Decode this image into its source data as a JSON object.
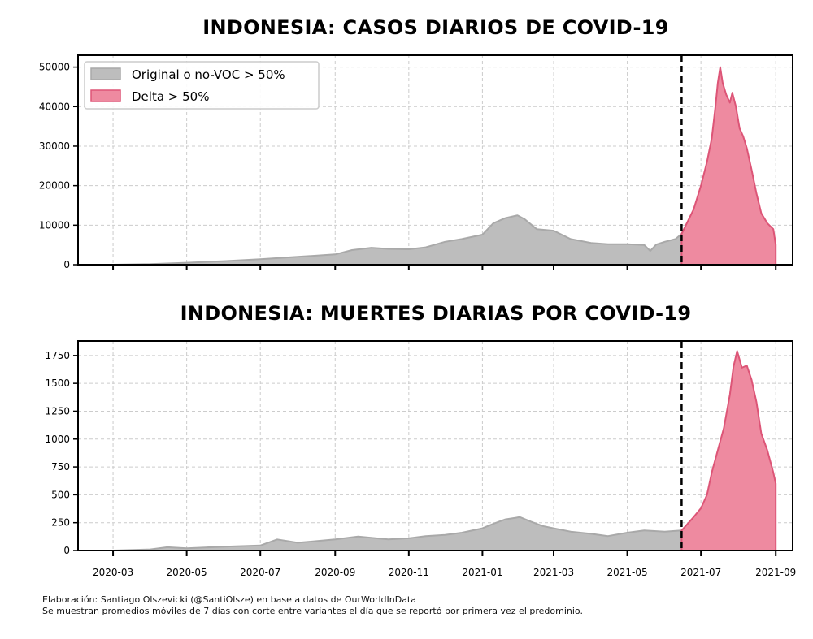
{
  "figure": {
    "footnote_1": "Elaboración: Santiago Olszevicki (@SantiOlsze) en base a datos de OurWorldInData",
    "footnote_2": "Se muestran promedios móviles de 7 días con corte entre variantes el día que se reportó por primera vez el predominio."
  },
  "legend": {
    "entries": [
      {
        "label": "Original o no-VOC > 50%",
        "color": "#bdbdbd",
        "edge": "#a9a9a9"
      },
      {
        "label": "Delta > 50%",
        "color": "#ee8aa0",
        "edge": "#dd5577"
      }
    ],
    "placement": "upper-left"
  },
  "colors": {
    "original_fill": "#bdbdbd",
    "original_edge": "#a9a9a9",
    "delta_fill": "#ee8aa0",
    "delta_edge": "#dd5577",
    "cutoff_line": "#000000",
    "grid": "#cccccc"
  },
  "chart_data": [
    {
      "type": "area",
      "title": "INDONESIA: CASOS DIARIOS DE COVID-19",
      "xlabel": "",
      "ylabel": "",
      "x_range": [
        "2020-02-01",
        "2021-09-15"
      ],
      "ylim": [
        0,
        53000
      ],
      "yticks": [
        0,
        10000,
        20000,
        30000,
        40000,
        50000
      ],
      "xticks": [
        "2020-03",
        "2020-05",
        "2020-07",
        "2020-09",
        "2020-11",
        "2021-01",
        "2021-03",
        "2021-05",
        "2021-07",
        "2021-09"
      ],
      "x_ticklabels_visible": false,
      "grid": true,
      "cutoff_date": "2021-06-15",
      "series": [
        {
          "name": "Original o no-VOC > 50%",
          "x": [
            "2020-03-01",
            "2020-04-01",
            "2020-05-01",
            "2020-06-01",
            "2020-07-01",
            "2020-08-01",
            "2020-09-01",
            "2020-09-15",
            "2020-10-01",
            "2020-10-15",
            "2020-11-01",
            "2020-11-15",
            "2020-12-01",
            "2020-12-15",
            "2021-01-01",
            "2021-01-10",
            "2021-01-20",
            "2021-01-30",
            "2021-02-05",
            "2021-02-15",
            "2021-03-01",
            "2021-03-15",
            "2021-04-01",
            "2021-04-15",
            "2021-05-01",
            "2021-05-15",
            "2021-05-20",
            "2021-05-25",
            "2021-06-01",
            "2021-06-10",
            "2021-06-15"
          ],
          "y": [
            0,
            150,
            500,
            900,
            1400,
            2000,
            2600,
            3700,
            4300,
            4000,
            3900,
            4400,
            5800,
            6500,
            7600,
            10500,
            11800,
            12500,
            11500,
            9000,
            8600,
            6500,
            5500,
            5200,
            5200,
            5000,
            3500,
            5100,
            5800,
            6500,
            7800
          ]
        },
        {
          "name": "Delta > 50%",
          "x": [
            "2021-06-15",
            "2021-06-25",
            "2021-07-01",
            "2021-07-06",
            "2021-07-10",
            "2021-07-13",
            "2021-07-15",
            "2021-07-17",
            "2021-07-19",
            "2021-07-22",
            "2021-07-25",
            "2021-07-27",
            "2021-07-30",
            "2021-08-02",
            "2021-08-05",
            "2021-08-08",
            "2021-08-12",
            "2021-08-16",
            "2021-08-20",
            "2021-08-25",
            "2021-08-30",
            "2021-09-01"
          ],
          "y": [
            7800,
            14000,
            20000,
            26000,
            32000,
            40000,
            46000,
            50000,
            46000,
            43000,
            41000,
            43500,
            40000,
            34500,
            32500,
            29500,
            24000,
            18000,
            13000,
            10500,
            9000,
            5000
          ]
        }
      ]
    },
    {
      "type": "area",
      "title": "INDONESIA: MUERTES DIARIAS POR COVID-19",
      "xlabel": "",
      "ylabel": "",
      "x_range": [
        "2020-02-01",
        "2021-09-15"
      ],
      "ylim": [
        0,
        1880
      ],
      "yticks": [
        0,
        250,
        500,
        750,
        1000,
        1250,
        1500,
        1750
      ],
      "xticks": [
        "2020-03",
        "2020-05",
        "2020-07",
        "2020-09",
        "2020-11",
        "2021-01",
        "2021-03",
        "2021-05",
        "2021-07",
        "2021-09"
      ],
      "x_ticklabels_visible": true,
      "grid": true,
      "cutoff_date": "2021-06-15",
      "series": [
        {
          "name": "Original o no-VOC > 50%",
          "x": [
            "2020-03-01",
            "2020-04-01",
            "2020-04-15",
            "2020-05-01",
            "2020-06-01",
            "2020-07-01",
            "2020-07-15",
            "2020-08-01",
            "2020-09-01",
            "2020-09-20",
            "2020-10-15",
            "2020-11-01",
            "2020-11-15",
            "2020-12-01",
            "2020-12-15",
            "2021-01-01",
            "2021-01-10",
            "2021-01-20",
            "2021-02-01",
            "2021-02-10",
            "2021-02-20",
            "2021-03-01",
            "2021-03-15",
            "2021-04-01",
            "2021-04-15",
            "2021-05-01",
            "2021-05-15",
            "2021-06-01",
            "2021-06-15"
          ],
          "y": [
            0,
            10,
            30,
            20,
            35,
            45,
            100,
            70,
            100,
            125,
            100,
            110,
            130,
            140,
            160,
            200,
            240,
            280,
            300,
            260,
            220,
            200,
            170,
            150,
            130,
            160,
            180,
            170,
            180
          ]
        },
        {
          "name": "Delta > 50%",
          "x": [
            "2021-06-15",
            "2021-06-25",
            "2021-07-01",
            "2021-07-06",
            "2021-07-10",
            "2021-07-15",
            "2021-07-20",
            "2021-07-25",
            "2021-07-28",
            "2021-07-31",
            "2021-08-04",
            "2021-08-08",
            "2021-08-12",
            "2021-08-16",
            "2021-08-20",
            "2021-08-25",
            "2021-08-30",
            "2021-09-01"
          ],
          "y": [
            180,
            300,
            380,
            500,
            700,
            900,
            1100,
            1400,
            1650,
            1790,
            1640,
            1660,
            1530,
            1330,
            1050,
            900,
            700,
            600
          ]
        }
      ]
    }
  ]
}
